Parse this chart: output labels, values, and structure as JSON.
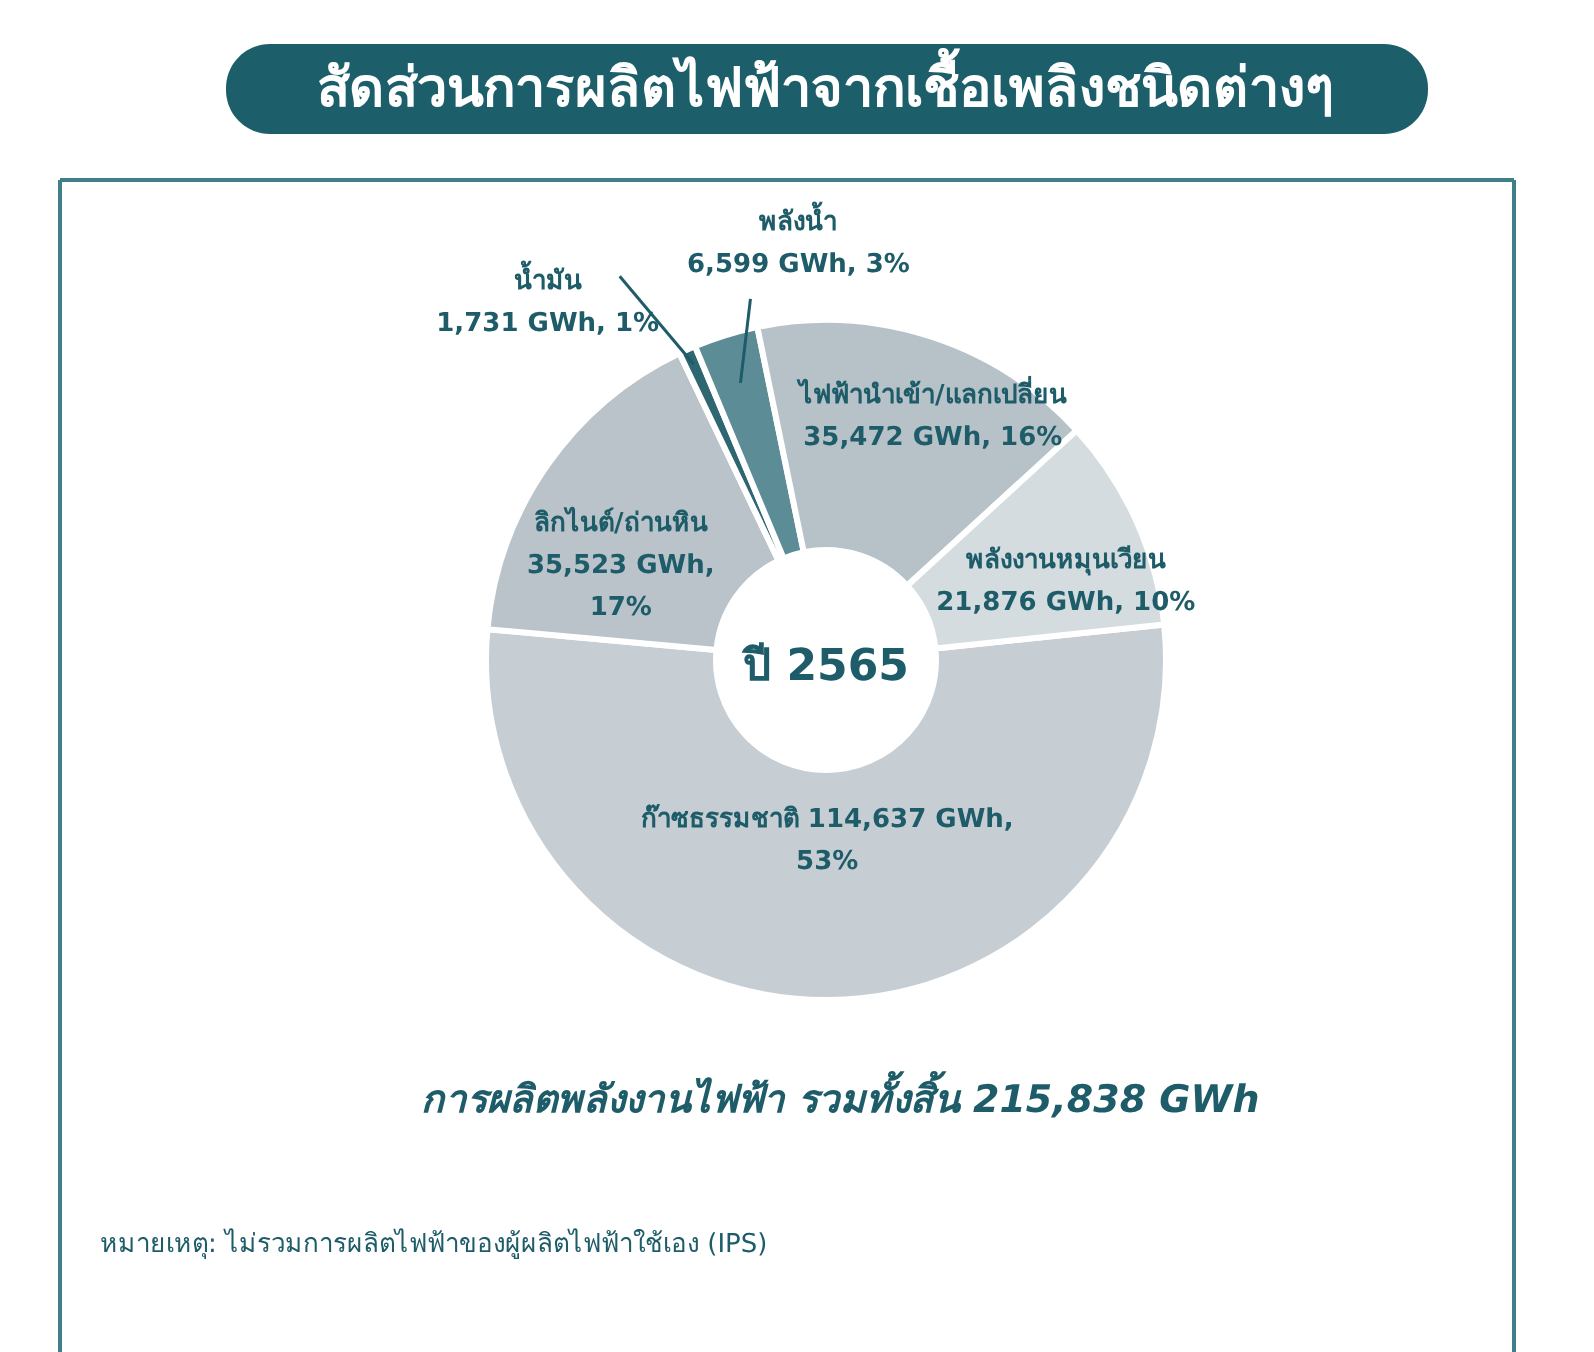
{
  "chart_data": {
    "type": "donut",
    "title": "สัดส่วนการผลิตไฟฟ้าจากเชื้อเพลิงชนิดต่างๆ",
    "categories": [
      "ก๊าซธรรมชาติ",
      "ลิกไนต์/ถ่านหิน",
      "น้ำมัน",
      "พลังน้ำ",
      "ไฟฟ้านำเข้า/แลกเปลี่ยน",
      "พลังงานหมุนเวียน"
    ],
    "values": [
      114637,
      35523,
      1731,
      6599,
      35472,
      21876
    ],
    "colors": [
      "#c6ced4",
      "#b9c3c9",
      "#2e6671",
      "#5c8d96",
      "#b7c1c8",
      "#d5dcdf"
    ],
    "value_labels": [
      "114,637 GWh, 53%",
      "35,523 GWh, 17%",
      "1,731 GWh, 1%",
      "6,599 GWh, 3%",
      "35,472 GWh, 16%",
      "21,876 GWh, 10%"
    ],
    "annotations": [
      "ปี 2565",
      "การผลิตพลังงานไฟฟ้า รวมทั้งสิ้น 215,838 GWh",
      "หมายเหตุ:  ไม่รวมการผลิตไฟฟ้าของผู้ผลิตไฟฟ้าใช้เอง (IPS)"
    ]
  }
}
